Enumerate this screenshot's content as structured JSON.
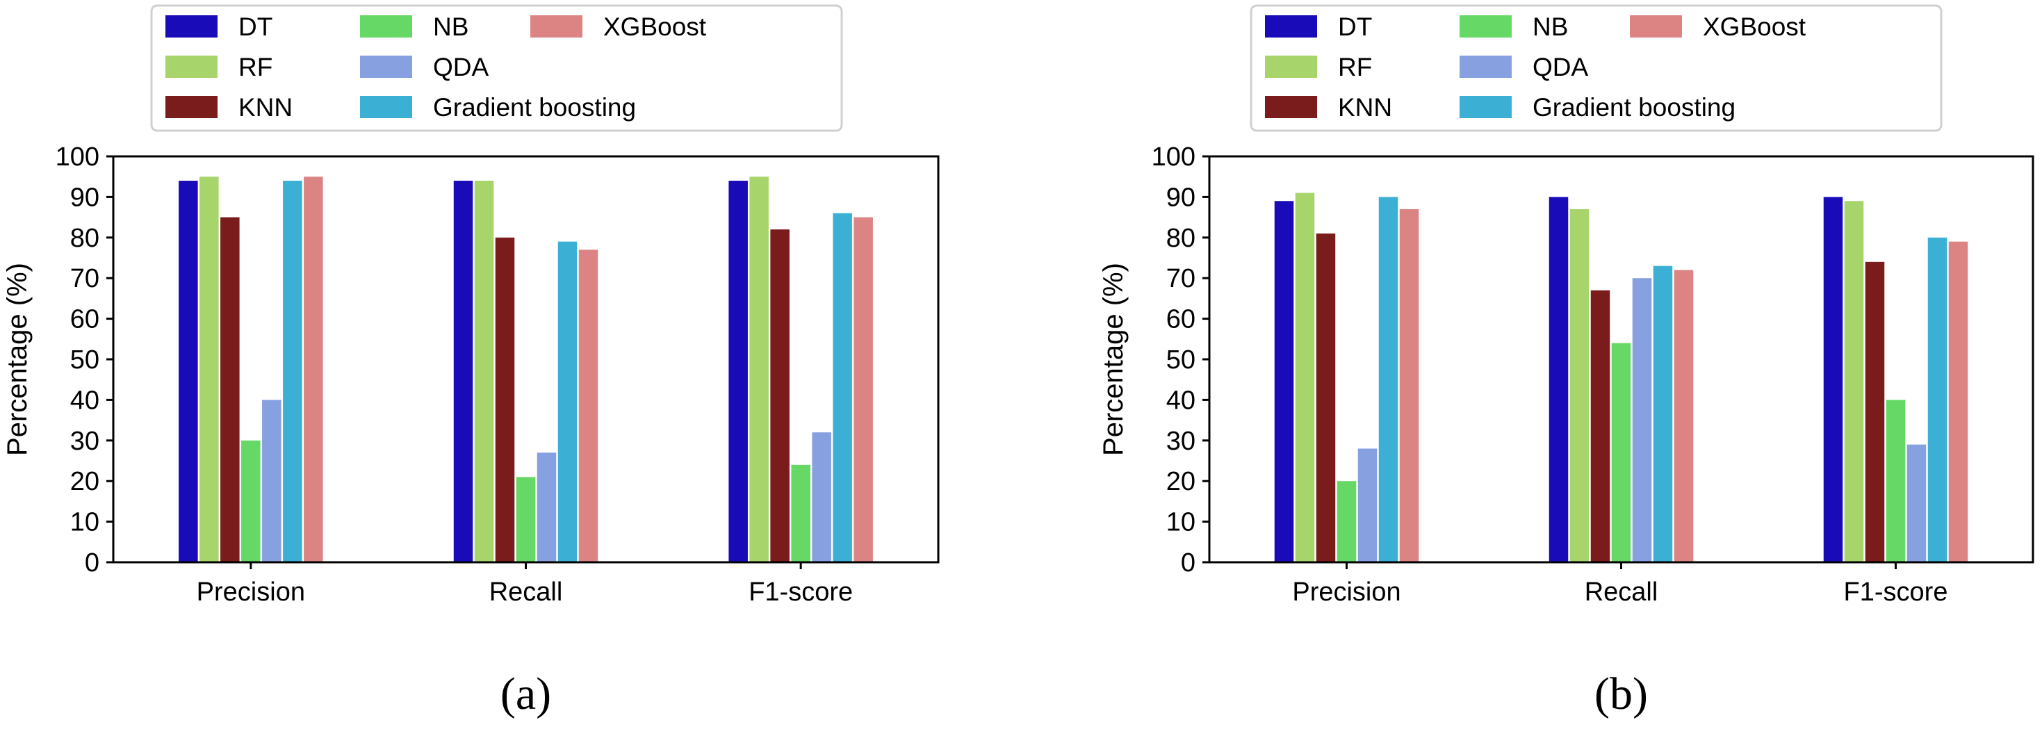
{
  "chart_data": [
    {
      "type": "bar",
      "panel_label": "(a)",
      "categories": [
        "Precision",
        "Recall",
        "F1-score"
      ],
      "series": [
        {
          "name": "DT",
          "color": "#1a0bb8",
          "values": [
            94,
            94,
            94
          ]
        },
        {
          "name": "RF",
          "color": "#a8d46c",
          "values": [
            95,
            94,
            95
          ]
        },
        {
          "name": "KNN",
          "color": "#7a1c1c",
          "values": [
            85,
            80,
            82
          ]
        },
        {
          "name": "NB",
          "color": "#66d866",
          "values": [
            30,
            21,
            24
          ]
        },
        {
          "name": "QDA",
          "color": "#86a0e0",
          "values": [
            40,
            27,
            32
          ]
        },
        {
          "name": "Gradient boosting",
          "color": "#3cb0d4",
          "values": [
            94,
            79,
            86
          ]
        },
        {
          "name": "XGBoost",
          "color": "#dc8484",
          "values": [
            95,
            77,
            85
          ]
        }
      ],
      "ylabel": "Percentage (%)",
      "ylim": [
        0,
        100
      ],
      "yticks": [
        0,
        10,
        20,
        30,
        40,
        50,
        60,
        70,
        80,
        90,
        100
      ],
      "grid": false,
      "legend": "above-plot, 3 columns"
    },
    {
      "type": "bar",
      "panel_label": "(b)",
      "categories": [
        "Precision",
        "Recall",
        "F1-score"
      ],
      "series": [
        {
          "name": "DT",
          "color": "#1a0bb8",
          "values": [
            89,
            90,
            90
          ]
        },
        {
          "name": "RF",
          "color": "#a8d46c",
          "values": [
            91,
            87,
            89
          ]
        },
        {
          "name": "KNN",
          "color": "#7a1c1c",
          "values": [
            81,
            67,
            74
          ]
        },
        {
          "name": "NB",
          "color": "#66d866",
          "values": [
            20,
            54,
            40
          ]
        },
        {
          "name": "QDA",
          "color": "#86a0e0",
          "values": [
            28,
            70,
            29
          ]
        },
        {
          "name": "Gradient boosting",
          "color": "#3cb0d4",
          "values": [
            90,
            73,
            80
          ]
        },
        {
          "name": "XGBoost",
          "color": "#dc8484",
          "values": [
            87,
            72,
            79
          ]
        }
      ],
      "ylabel": "Percentage (%)",
      "ylim": [
        0,
        100
      ],
      "yticks": [
        0,
        10,
        20,
        30,
        40,
        50,
        60,
        70,
        80,
        90,
        100
      ],
      "grid": false,
      "legend": "above-plot, 3 columns"
    }
  ]
}
